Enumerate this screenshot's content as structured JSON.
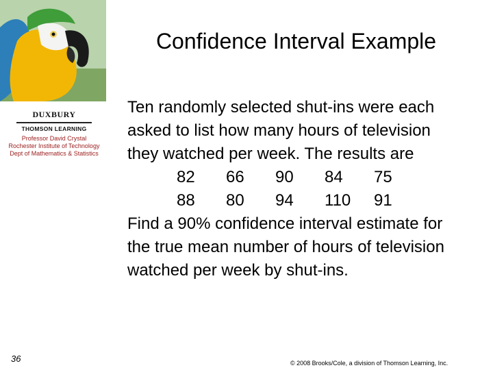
{
  "logo": {
    "brand": "DUXBURY",
    "brand2": "THOMSON LEARNING",
    "lines": [
      "Professor David Crystal",
      "Rochester Institute of Technology",
      "Dept of Mathematics & Statistics"
    ]
  },
  "slide": {
    "title": "Confidence Interval Example",
    "intro": [
      "Ten randomly selected shut-ins were each",
      "asked to list how many hours of television",
      "they watched per week.  The results are"
    ],
    "data_rows": [
      [
        "82",
        "66",
        "90",
        "84",
        "75"
      ],
      [
        "88",
        "80",
        "94",
        "110",
        "91"
      ]
    ],
    "question": [
      "Find a 90% confidence interval estimate for",
      "the true mean number of hours of television",
      "watched per week by shut-ins."
    ],
    "page_number": "36",
    "copyright": "© 2008 Brooks/Cole, a division of Thomson Learning, Inc."
  }
}
